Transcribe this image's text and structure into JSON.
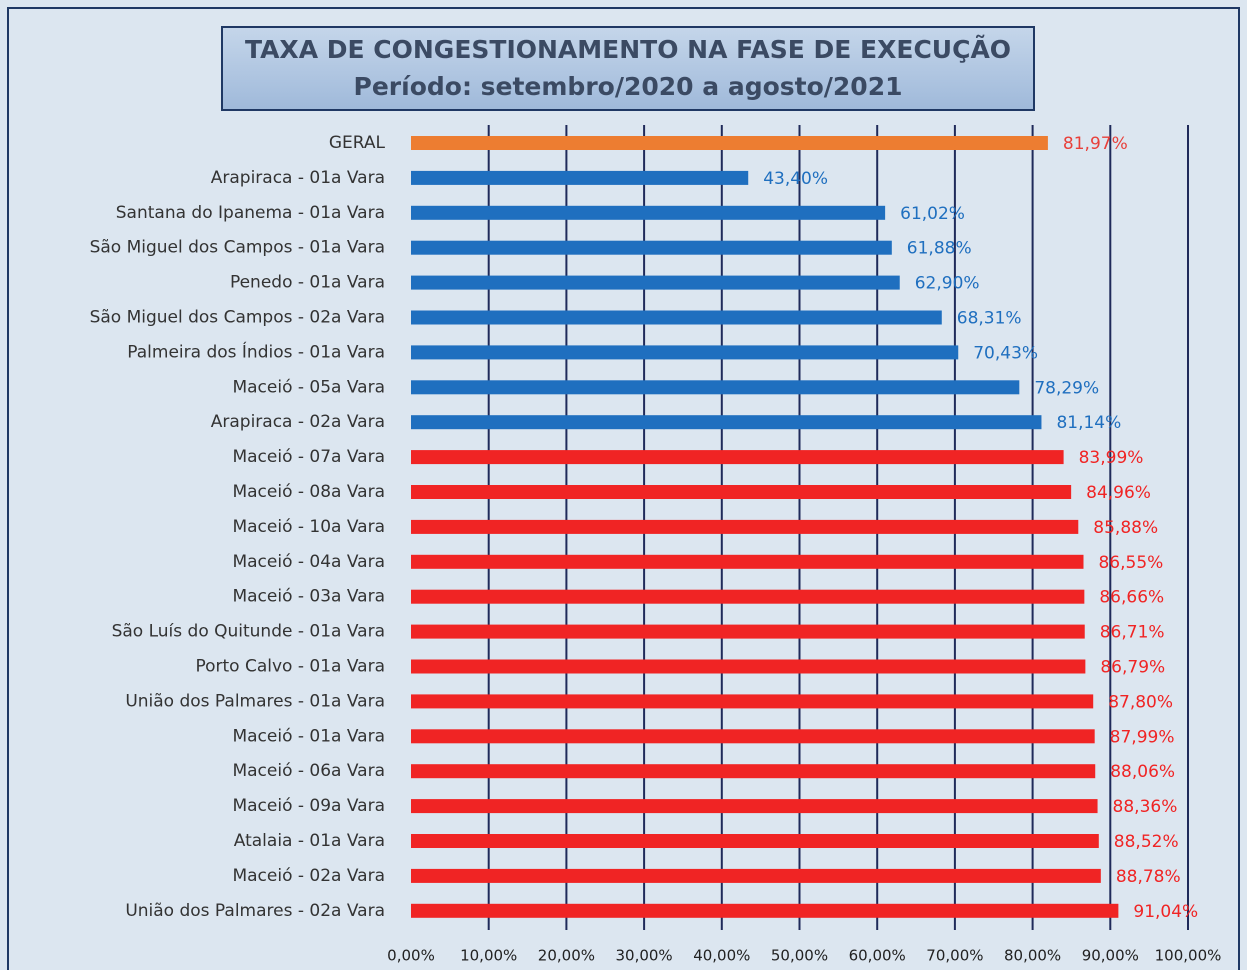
{
  "chart_data": {
    "type": "barh",
    "title": "TAXA DE CONGESTIONAMENTO NA FASE DE EXECUÇÃO",
    "subtitle": "Período: setembro/2020 a agosto/2021",
    "categories": [
      "GERAL",
      "Arapiraca - 01a Vara",
      "Santana do Ipanema - 01a Vara",
      "São Miguel dos Campos - 01a Vara",
      "Penedo - 01a Vara",
      "São Miguel dos Campos - 02a Vara",
      "Palmeira dos Índios - 01a Vara",
      "Maceió - 05a Vara",
      "Arapiraca - 02a Vara",
      "Maceió - 07a Vara",
      "Maceió - 08a Vara",
      "Maceió - 10a Vara",
      "Maceió - 04a Vara",
      "Maceió - 03a Vara",
      "São Luís do Quitunde - 01a Vara",
      "Porto Calvo - 01a Vara",
      "União dos Palmares - 01a Vara",
      "Maceió - 01a Vara",
      "Maceió - 06a Vara",
      "Maceió - 09a Vara",
      "Atalaia - 01a Vara",
      "Maceió - 02a Vara",
      "União dos Palmares - 02a Vara"
    ],
    "values": [
      81.97,
      43.4,
      61.02,
      61.88,
      62.9,
      68.31,
      70.43,
      78.29,
      81.14,
      83.99,
      84.96,
      85.88,
      86.55,
      86.66,
      86.71,
      86.79,
      87.8,
      87.99,
      88.06,
      88.36,
      88.52,
      88.78,
      91.04
    ],
    "value_labels": [
      "81,97%",
      "43,40%",
      "61,02%",
      "61,88%",
      "62,90%",
      "68,31%",
      "70,43%",
      "78,29%",
      "81,14%",
      "83,99%",
      "84,96%",
      "85,88%",
      "86,55%",
      "86,66%",
      "86,71%",
      "86,79%",
      "87,80%",
      "87,99%",
      "88,06%",
      "88,36%",
      "88,52%",
      "88,78%",
      "91,04%"
    ],
    "colors": [
      "#ed7d31",
      "#1f6fbf",
      "#1f6fbf",
      "#1f6fbf",
      "#1f6fbf",
      "#1f6fbf",
      "#1f6fbf",
      "#1f6fbf",
      "#1f6fbf",
      "#f02424",
      "#f02424",
      "#f02424",
      "#f02424",
      "#f02424",
      "#f02424",
      "#f02424",
      "#f02424",
      "#f02424",
      "#f02424",
      "#f02424",
      "#f02424",
      "#f02424",
      "#f02424"
    ],
    "label_colors": [
      "#e8403a",
      "#1f6fbf",
      "#1f6fbf",
      "#1f6fbf",
      "#1f6fbf",
      "#1f6fbf",
      "#1f6fbf",
      "#1f6fbf",
      "#1f6fbf",
      "#f02424",
      "#f02424",
      "#f02424",
      "#f02424",
      "#f02424",
      "#f02424",
      "#f02424",
      "#f02424",
      "#f02424",
      "#f02424",
      "#f02424",
      "#f02424",
      "#f02424",
      "#f02424"
    ],
    "xlim": [
      0,
      100
    ],
    "xticks": [
      {
        "value": 0,
        "label": "0,00%"
      },
      {
        "value": 10,
        "label": "10,00%"
      },
      {
        "value": 20,
        "label": "20,00%"
      },
      {
        "value": 30,
        "label": "30,00%"
      },
      {
        "value": 40,
        "label": "40,00%"
      },
      {
        "value": 50,
        "label": "50,00%"
      },
      {
        "value": 60,
        "label": "60,00%"
      },
      {
        "value": 70,
        "label": "70,00%"
      },
      {
        "value": 80,
        "label": "80,00%"
      },
      {
        "value": 90,
        "label": "90,00%"
      },
      {
        "value": 100,
        "label": "100,00%"
      }
    ],
    "grid": true
  }
}
